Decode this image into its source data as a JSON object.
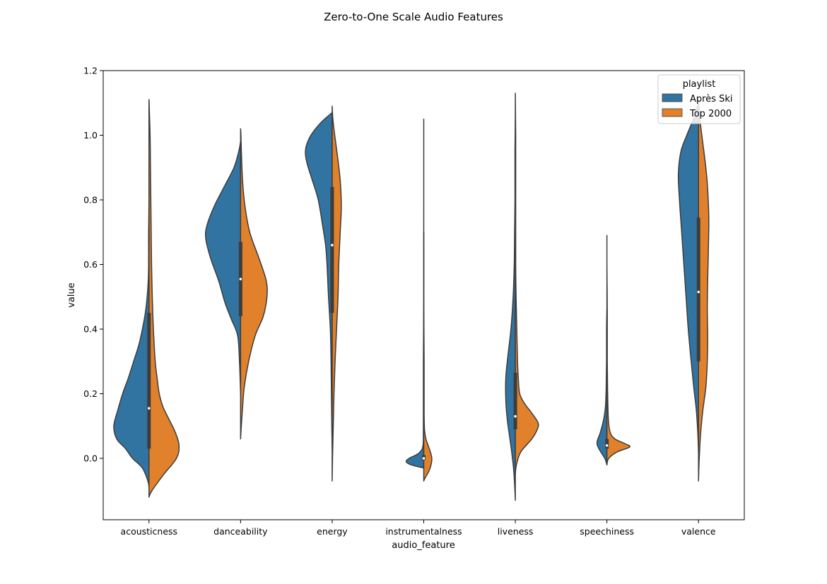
{
  "chart_data": {
    "type": "violin",
    "title": "Zero-to-One Scale Audio Features",
    "xlabel": "audio_feature",
    "ylabel": "value",
    "ylim": [
      -0.19,
      1.2
    ],
    "yticks": [
      0.0,
      0.2,
      0.4,
      0.6,
      0.8,
      1.0,
      1.2
    ],
    "split": true,
    "legend": {
      "title": "playlist",
      "position": "top-right"
    },
    "series": [
      {
        "name": "Après Ski",
        "color": "#3274a1",
        "side": "left"
      },
      {
        "name": "Top 2000",
        "color": "#e1812c",
        "side": "right"
      }
    ],
    "categories": [
      "acousticness",
      "danceability",
      "energy",
      "instrumentalness",
      "liveness",
      "speechiness",
      "valence"
    ],
    "violins": [
      {
        "feature": "acousticness",
        "left": [
          [
            -0.09,
            0.0
          ],
          [
            -0.07,
            0.03
          ],
          [
            -0.03,
            0.18
          ],
          [
            0.0,
            0.45
          ],
          [
            0.03,
            0.64
          ],
          [
            0.06,
            0.88
          ],
          [
            0.1,
            0.96
          ],
          [
            0.15,
            0.85
          ],
          [
            0.2,
            0.72
          ],
          [
            0.25,
            0.56
          ],
          [
            0.3,
            0.42
          ],
          [
            0.35,
            0.28
          ],
          [
            0.4,
            0.18
          ],
          [
            0.45,
            0.1
          ],
          [
            0.5,
            0.05
          ],
          [
            0.55,
            0.02
          ],
          [
            0.6,
            0.01
          ],
          [
            0.7,
            0.01
          ],
          [
            0.8,
            0.0
          ],
          [
            0.9,
            0.0
          ],
          [
            1.0,
            0.0
          ],
          [
            1.11,
            0.0
          ]
        ],
        "right": [
          [
            -0.12,
            0.0
          ],
          [
            -0.1,
            0.08
          ],
          [
            -0.05,
            0.4
          ],
          [
            0.0,
            0.75
          ],
          [
            0.04,
            0.82
          ],
          [
            0.08,
            0.72
          ],
          [
            0.12,
            0.55
          ],
          [
            0.16,
            0.38
          ],
          [
            0.2,
            0.28
          ],
          [
            0.25,
            0.22
          ],
          [
            0.3,
            0.17
          ],
          [
            0.4,
            0.12
          ],
          [
            0.5,
            0.09
          ],
          [
            0.6,
            0.07
          ],
          [
            0.7,
            0.06
          ],
          [
            0.8,
            0.05
          ],
          [
            0.9,
            0.04
          ],
          [
            1.0,
            0.03
          ],
          [
            1.11,
            0.0
          ]
        ],
        "box": {
          "q1": 0.03,
          "median": 0.155,
          "q3": 0.45
        }
      },
      {
        "feature": "danceability",
        "left": [
          [
            0.2,
            0.0
          ],
          [
            0.3,
            0.03
          ],
          [
            0.38,
            0.08
          ],
          [
            0.43,
            0.25
          ],
          [
            0.48,
            0.42
          ],
          [
            0.55,
            0.6
          ],
          [
            0.62,
            0.82
          ],
          [
            0.68,
            0.95
          ],
          [
            0.72,
            0.92
          ],
          [
            0.78,
            0.72
          ],
          [
            0.84,
            0.45
          ],
          [
            0.9,
            0.18
          ],
          [
            0.95,
            0.05
          ],
          [
            0.98,
            0.0
          ]
        ],
        "right": [
          [
            0.06,
            0.0
          ],
          [
            0.1,
            0.02
          ],
          [
            0.15,
            0.05
          ],
          [
            0.22,
            0.1
          ],
          [
            0.3,
            0.22
          ],
          [
            0.38,
            0.4
          ],
          [
            0.44,
            0.62
          ],
          [
            0.5,
            0.72
          ],
          [
            0.55,
            0.7
          ],
          [
            0.62,
            0.5
          ],
          [
            0.7,
            0.25
          ],
          [
            0.78,
            0.12
          ],
          [
            0.85,
            0.06
          ],
          [
            0.92,
            0.03
          ],
          [
            1.0,
            0.01
          ],
          [
            1.02,
            0.0
          ]
        ],
        "box": {
          "q1": 0.44,
          "median": 0.555,
          "q3": 0.67
        }
      },
      {
        "feature": "energy",
        "left": [
          [
            0.03,
            0.0
          ],
          [
            0.1,
            0.01
          ],
          [
            0.2,
            0.02
          ],
          [
            0.3,
            0.03
          ],
          [
            0.4,
            0.05
          ],
          [
            0.5,
            0.1
          ],
          [
            0.6,
            0.14
          ],
          [
            0.66,
            0.18
          ],
          [
            0.72,
            0.26
          ],
          [
            0.8,
            0.38
          ],
          [
            0.86,
            0.54
          ],
          [
            0.92,
            0.7
          ],
          [
            0.96,
            0.72
          ],
          [
            1.0,
            0.58
          ],
          [
            1.04,
            0.3
          ],
          [
            1.07,
            0.0
          ]
        ],
        "right": [
          [
            -0.07,
            0.0
          ],
          [
            0.0,
            0.01
          ],
          [
            0.1,
            0.03
          ],
          [
            0.2,
            0.05
          ],
          [
            0.3,
            0.08
          ],
          [
            0.4,
            0.12
          ],
          [
            0.5,
            0.16
          ],
          [
            0.6,
            0.18
          ],
          [
            0.7,
            0.22
          ],
          [
            0.78,
            0.25
          ],
          [
            0.86,
            0.22
          ],
          [
            0.94,
            0.14
          ],
          [
            1.0,
            0.07
          ],
          [
            1.05,
            0.02
          ],
          [
            1.09,
            0.0
          ]
        ],
        "box": {
          "q1": 0.45,
          "median": 0.66,
          "q3": 0.84
        }
      },
      {
        "feature": "instrumentalness",
        "left": [
          [
            -0.03,
            0.0
          ],
          [
            -0.02,
            0.35
          ],
          [
            -0.01,
            0.48
          ],
          [
            0.0,
            0.4
          ],
          [
            0.01,
            0.22
          ],
          [
            0.02,
            0.1
          ],
          [
            0.04,
            0.02
          ],
          [
            0.1,
            0.01
          ],
          [
            0.3,
            0.01
          ],
          [
            0.5,
            0.0
          ],
          [
            0.7,
            0.0
          ]
        ],
        "right": [
          [
            -0.07,
            0.0
          ],
          [
            -0.06,
            0.04
          ],
          [
            -0.04,
            0.14
          ],
          [
            -0.02,
            0.2
          ],
          [
            0.0,
            0.22
          ],
          [
            0.02,
            0.18
          ],
          [
            0.04,
            0.12
          ],
          [
            0.06,
            0.06
          ],
          [
            0.09,
            0.02
          ],
          [
            0.15,
            0.01
          ],
          [
            0.3,
            0.01
          ],
          [
            0.5,
            0.0
          ],
          [
            0.8,
            0.0
          ],
          [
            1.05,
            0.0
          ]
        ],
        "box": {
          "q1": -0.005,
          "median": 0.0,
          "q3": 0.01
        }
      },
      {
        "feature": "liveness",
        "left": [
          [
            -0.13,
            0.0
          ],
          [
            -0.08,
            0.02
          ],
          [
            -0.03,
            0.05
          ],
          [
            0.02,
            0.1
          ],
          [
            0.07,
            0.16
          ],
          [
            0.12,
            0.22
          ],
          [
            0.18,
            0.26
          ],
          [
            0.25,
            0.26
          ],
          [
            0.32,
            0.2
          ],
          [
            0.4,
            0.12
          ],
          [
            0.5,
            0.06
          ],
          [
            0.6,
            0.03
          ],
          [
            0.7,
            0.02
          ],
          [
            0.8,
            0.01
          ],
          [
            0.95,
            0.01
          ],
          [
            1.05,
            0.0
          ]
        ],
        "right": [
          [
            -0.05,
            0.0
          ],
          [
            -0.02,
            0.03
          ],
          [
            0.02,
            0.15
          ],
          [
            0.06,
            0.45
          ],
          [
            0.09,
            0.6
          ],
          [
            0.11,
            0.62
          ],
          [
            0.14,
            0.45
          ],
          [
            0.17,
            0.25
          ],
          [
            0.2,
            0.12
          ],
          [
            0.25,
            0.08
          ],
          [
            0.3,
            0.06
          ],
          [
            0.4,
            0.04
          ],
          [
            0.5,
            0.02
          ],
          [
            0.6,
            0.01
          ],
          [
            0.8,
            0.01
          ],
          [
            1.0,
            0.01
          ],
          [
            1.13,
            0.0
          ]
        ],
        "box": {
          "q1": 0.09,
          "median": 0.13,
          "q3": 0.265
        }
      },
      {
        "feature": "speechiness",
        "left": [
          [
            -0.02,
            0.0
          ],
          [
            0.0,
            0.06
          ],
          [
            0.03,
            0.22
          ],
          [
            0.05,
            0.27
          ],
          [
            0.08,
            0.18
          ],
          [
            0.12,
            0.09
          ],
          [
            0.16,
            0.04
          ],
          [
            0.22,
            0.02
          ],
          [
            0.3,
            0.01
          ],
          [
            0.4,
            0.01
          ],
          [
            0.46,
            0.0
          ]
        ],
        "right": [
          [
            -0.02,
            0.0
          ],
          [
            0.0,
            0.05
          ],
          [
            0.02,
            0.28
          ],
          [
            0.035,
            0.62
          ],
          [
            0.045,
            0.5
          ],
          [
            0.06,
            0.22
          ],
          [
            0.08,
            0.09
          ],
          [
            0.12,
            0.04
          ],
          [
            0.2,
            0.02
          ],
          [
            0.3,
            0.01
          ],
          [
            0.45,
            0.01
          ],
          [
            0.6,
            0.0
          ],
          [
            0.69,
            0.0
          ]
        ],
        "box": {
          "q1": 0.03,
          "median": 0.04,
          "q3": 0.06
        }
      },
      {
        "feature": "valence",
        "left": [
          [
            0.02,
            0.0
          ],
          [
            0.08,
            0.02
          ],
          [
            0.15,
            0.06
          ],
          [
            0.22,
            0.13
          ],
          [
            0.3,
            0.2
          ],
          [
            0.4,
            0.28
          ],
          [
            0.5,
            0.34
          ],
          [
            0.6,
            0.4
          ],
          [
            0.7,
            0.46
          ],
          [
            0.8,
            0.52
          ],
          [
            0.88,
            0.55
          ],
          [
            0.95,
            0.48
          ],
          [
            1.0,
            0.32
          ],
          [
            1.05,
            0.14
          ],
          [
            1.1,
            0.0
          ]
        ],
        "right": [
          [
            -0.07,
            0.0
          ],
          [
            0.0,
            0.02
          ],
          [
            0.08,
            0.06
          ],
          [
            0.15,
            0.12
          ],
          [
            0.22,
            0.2
          ],
          [
            0.3,
            0.24
          ],
          [
            0.38,
            0.25
          ],
          [
            0.46,
            0.24
          ],
          [
            0.55,
            0.25
          ],
          [
            0.65,
            0.27
          ],
          [
            0.75,
            0.28
          ],
          [
            0.85,
            0.24
          ],
          [
            0.92,
            0.18
          ],
          [
            1.0,
            0.09
          ],
          [
            1.06,
            0.03
          ],
          [
            1.11,
            0.0
          ]
        ],
        "box": {
          "q1": 0.3,
          "median": 0.515,
          "q3": 0.745
        }
      }
    ]
  }
}
